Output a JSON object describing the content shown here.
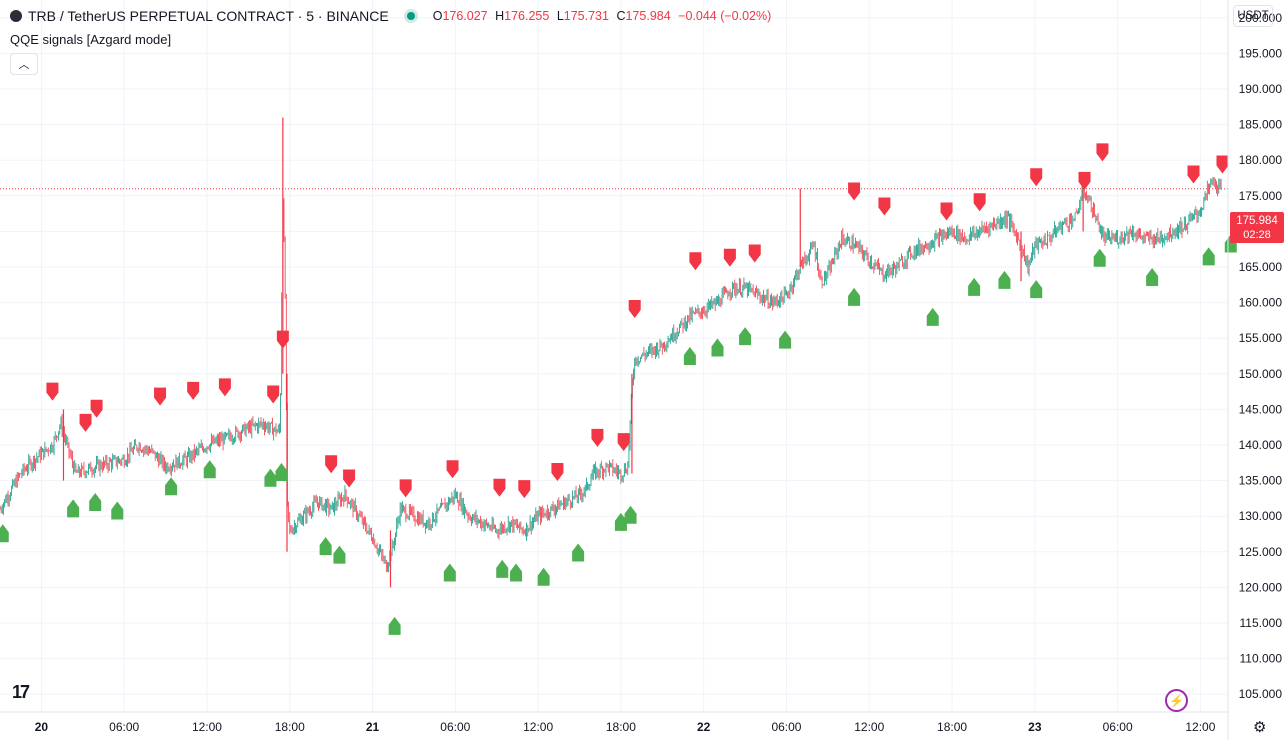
{
  "header": {
    "symbol": "TRB / TetherUS PERPETUAL CONTRACT · 5 · BINANCE",
    "open_label": "O",
    "open": "176.027",
    "high_label": "H",
    "high": "176.255",
    "low_label": "L",
    "low": "175.731",
    "close_label": "C",
    "close": "175.984",
    "change": "−0.044 (−0.02%)"
  },
  "indicator": {
    "name": "QQE signals [Azgard mode]",
    "collapse_icon": "chevron-up-icon"
  },
  "currency": "USDT",
  "last_price": {
    "value": "175.984",
    "countdown": "02:28"
  },
  "colors": {
    "up": "#089981",
    "down": "#f23645",
    "buy_marker": "#4caf50",
    "sell_marker": "#f23645",
    "grid": "#f0f3fa"
  },
  "chart_data": {
    "type": "candlestick",
    "y_axis": {
      "ticks": [
        "105.000",
        "110.000",
        "115.000",
        "120.000",
        "125.000",
        "130.000",
        "135.000",
        "140.000",
        "145.000",
        "150.000",
        "155.000",
        "160.000",
        "165.000",
        "170.000",
        "175.000",
        "180.000",
        "185.000",
        "190.000",
        "195.000",
        "200.000"
      ],
      "range": [
        102.5,
        202.5
      ]
    },
    "x_axis": {
      "ticks": [
        "20",
        "06:00",
        "12:00",
        "18:00",
        "21",
        "06:00",
        "12:00",
        "18:00",
        "22",
        "06:00",
        "12:00",
        "18:00",
        "23",
        "06:00",
        "12:00"
      ],
      "bold": [
        "20",
        "21",
        "22",
        "23"
      ],
      "range_hours": [
        -3,
        86
      ]
    },
    "price_path": [
      [
        -3,
        131
      ],
      [
        -1.5,
        136
      ],
      [
        -0.5,
        138
      ],
      [
        0.8,
        140
      ],
      [
        1.4,
        143
      ],
      [
        2,
        139
      ],
      [
        2.5,
        136
      ],
      [
        4,
        137
      ],
      [
        6,
        138
      ],
      [
        7,
        140
      ],
      [
        8,
        139
      ],
      [
        9,
        137
      ],
      [
        10.5,
        138
      ],
      [
        12,
        140
      ],
      [
        13.5,
        141
      ],
      [
        14.5,
        142
      ],
      [
        16,
        143
      ],
      [
        17,
        142
      ],
      [
        17.3,
        142
      ],
      [
        17.5,
        175
      ],
      [
        17.7,
        158
      ],
      [
        17.8,
        132
      ],
      [
        18,
        128
      ],
      [
        19,
        130
      ],
      [
        20,
        132
      ],
      [
        21,
        131
      ],
      [
        22,
        133
      ],
      [
        23,
        130
      ],
      [
        24,
        127
      ],
      [
        25,
        123
      ],
      [
        25.5,
        126
      ],
      [
        26,
        131
      ],
      [
        27,
        130
      ],
      [
        28,
        129
      ],
      [
        29,
        131
      ],
      [
        30,
        133
      ],
      [
        31,
        130
      ],
      [
        32,
        129
      ],
      [
        33,
        128
      ],
      [
        34,
        129
      ],
      [
        35,
        128
      ],
      [
        36,
        130
      ],
      [
        37,
        131
      ],
      [
        38,
        132
      ],
      [
        39,
        133
      ],
      [
        39.5,
        134
      ],
      [
        40,
        136
      ],
      [
        41,
        137
      ],
      [
        42,
        136
      ],
      [
        42.5,
        137
      ],
      [
        42.8,
        148
      ],
      [
        43,
        152
      ],
      [
        44,
        153
      ],
      [
        45,
        154
      ],
      [
        46,
        156
      ],
      [
        47,
        158
      ],
      [
        48,
        159
      ],
      [
        49,
        160
      ],
      [
        50,
        162
      ],
      [
        51,
        162
      ],
      [
        52,
        161
      ],
      [
        53,
        160
      ],
      [
        54,
        161
      ],
      [
        55,
        165
      ],
      [
        56,
        168
      ],
      [
        56.5,
        163
      ],
      [
        57,
        164
      ],
      [
        58,
        169
      ],
      [
        59,
        168
      ],
      [
        60,
        166
      ],
      [
        61,
        164
      ],
      [
        62,
        165
      ],
      [
        63,
        167
      ],
      [
        64,
        168
      ],
      [
        65,
        169
      ],
      [
        66,
        170
      ],
      [
        67,
        169
      ],
      [
        68,
        170
      ],
      [
        69,
        171
      ],
      [
        70,
        172
      ],
      [
        71,
        168
      ],
      [
        71.5,
        165
      ],
      [
        72,
        168
      ],
      [
        73,
        169
      ],
      [
        74,
        171
      ],
      [
        75,
        172
      ],
      [
        75.5,
        176
      ],
      [
        76,
        174
      ],
      [
        77,
        169
      ],
      [
        78,
        169
      ],
      [
        79,
        170
      ],
      [
        80,
        169
      ],
      [
        81,
        169
      ],
      [
        82,
        170
      ],
      [
        83,
        171
      ],
      [
        84,
        173
      ],
      [
        84.8,
        177
      ],
      [
        85.5,
        176
      ]
    ],
    "wicks": [
      [
        1.6,
        145,
        135
      ],
      [
        17.5,
        186,
        150
      ],
      [
        17.8,
        150,
        125
      ],
      [
        25.3,
        128,
        120
      ],
      [
        42.8,
        150,
        136
      ],
      [
        55,
        176,
        165
      ],
      [
        71,
        170,
        163
      ],
      [
        75.5,
        178,
        170
      ]
    ],
    "buy_signals": [
      [
        -2.8,
        127.6
      ],
      [
        2.3,
        131.1
      ],
      [
        3.9,
        132
      ],
      [
        5.5,
        130.8
      ],
      [
        9.4,
        134.2
      ],
      [
        12.2,
        136.6
      ],
      [
        16.6,
        135.4
      ],
      [
        17.4,
        136.2
      ],
      [
        20.6,
        125.8
      ],
      [
        21.6,
        124.6
      ],
      [
        25.6,
        114.6
      ],
      [
        29.6,
        122.1
      ],
      [
        33.4,
        122.6
      ],
      [
        34.4,
        122.1
      ],
      [
        36.4,
        121.5
      ],
      [
        38.9,
        124.9
      ],
      [
        42,
        129.2
      ],
      [
        42.7,
        130.2
      ],
      [
        47,
        152.5
      ],
      [
        49,
        153.7
      ],
      [
        51,
        155.3
      ],
      [
        53.9,
        154.8
      ],
      [
        58.9,
        160.8
      ],
      [
        64.6,
        158
      ],
      [
        67.6,
        162.2
      ],
      [
        69.8,
        163.2
      ],
      [
        72.1,
        161.9
      ],
      [
        76.7,
        166.3
      ],
      [
        80.5,
        163.6
      ],
      [
        84.6,
        166.5
      ],
      [
        86.2,
        168.3
      ]
    ],
    "sell_signals": [
      [
        0.8,
        147.5
      ],
      [
        3.2,
        143.1
      ],
      [
        4,
        145.1
      ],
      [
        8.6,
        146.8
      ],
      [
        11,
        147.6
      ],
      [
        13.3,
        148.1
      ],
      [
        16.8,
        147.1
      ],
      [
        17.5,
        154.8
      ],
      [
        21,
        137.3
      ],
      [
        22.3,
        135.3
      ],
      [
        26.4,
        133.9
      ],
      [
        29.8,
        136.6
      ],
      [
        33.2,
        134
      ],
      [
        35,
        133.8
      ],
      [
        37.4,
        136.2
      ],
      [
        40.3,
        141
      ],
      [
        42.2,
        140.4
      ],
      [
        43,
        159.1
      ],
      [
        47.4,
        165.8
      ],
      [
        49.9,
        166.3
      ],
      [
        51.7,
        166.9
      ],
      [
        58.9,
        175.6
      ],
      [
        61.1,
        173.5
      ],
      [
        65.6,
        172.8
      ],
      [
        68,
        174.1
      ],
      [
        72.1,
        177.6
      ],
      [
        75.6,
        177.1
      ],
      [
        76.9,
        181.1
      ],
      [
        83.5,
        178
      ],
      [
        85.6,
        179.4
      ]
    ],
    "last_price_line": 175.984
  }
}
